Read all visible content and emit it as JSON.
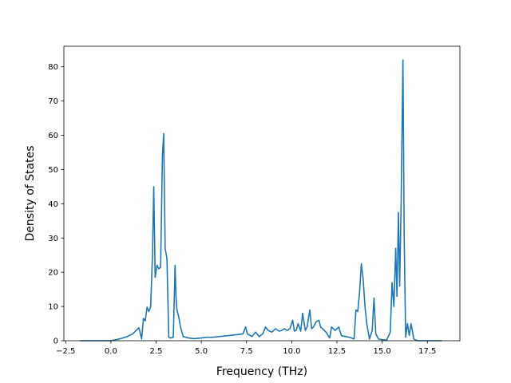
{
  "chart_data": {
    "type": "line",
    "xlabel": "Frequency (THz)",
    "ylabel": "Density of States",
    "xlim": [
      -2.6,
      19.3
    ],
    "ylim": [
      0,
      86
    ],
    "xticks": [
      -2.5,
      0.0,
      2.5,
      5.0,
      7.5,
      10.0,
      12.5,
      15.0,
      17.5
    ],
    "xtick_labels": [
      "−2.5",
      "0.0",
      "2.5",
      "5.0",
      "7.5",
      "10.0",
      "12.5",
      "15.0",
      "17.5"
    ],
    "yticks": [
      0,
      10,
      20,
      30,
      40,
      50,
      60,
      70,
      80
    ],
    "ytick_labels": [
      "0",
      "10",
      "20",
      "30",
      "40",
      "50",
      "60",
      "70",
      "80"
    ],
    "grid": false,
    "line_color": "#1f77b4",
    "series": [
      {
        "x": [
          -1.7,
          -1.0,
          -0.5,
          0.0,
          0.3,
          0.6,
          0.9,
          1.2,
          1.4,
          1.55,
          1.7,
          1.8,
          1.9,
          2.0,
          2.1,
          2.2,
          2.3,
          2.37,
          2.45,
          2.55,
          2.65,
          2.75,
          2.85,
          2.92,
          3.0,
          3.1,
          3.2,
          3.3,
          3.45,
          3.55,
          3.6,
          3.65,
          3.75,
          3.85,
          4.0,
          4.3,
          4.6,
          5.0,
          5.3,
          5.6,
          6.0,
          6.5,
          7.0,
          7.3,
          7.45,
          7.55,
          7.8,
          8.0,
          8.2,
          8.4,
          8.55,
          8.7,
          8.9,
          9.1,
          9.3,
          9.45,
          9.6,
          9.75,
          9.9,
          10.05,
          10.15,
          10.25,
          10.35,
          10.5,
          10.6,
          10.75,
          10.85,
          11.0,
          11.1,
          11.2,
          11.35,
          11.5,
          11.6,
          11.7,
          11.9,
          12.1,
          12.2,
          12.4,
          12.6,
          12.75,
          12.9,
          13.2,
          13.45,
          13.55,
          13.65,
          13.75,
          13.85,
          13.95,
          14.05,
          14.15,
          14.3,
          14.45,
          14.55,
          14.65,
          14.8,
          15.0,
          15.25,
          15.45,
          15.55,
          15.65,
          15.75,
          15.82,
          15.9,
          15.97,
          16.05,
          16.15,
          16.22,
          16.3,
          16.4,
          16.5,
          16.6,
          16.7,
          16.75,
          16.85,
          17.0,
          17.5,
          18.3
        ],
        "y": [
          0,
          0,
          0,
          0,
          0.3,
          0.7,
          1.2,
          2.0,
          3.0,
          3.8,
          0.5,
          6.5,
          5.8,
          9.8,
          8.5,
          10.0,
          25.0,
          45.0,
          18.5,
          22.0,
          21.0,
          21.5,
          54.0,
          60.5,
          27.0,
          24.0,
          1.0,
          0.8,
          1.0,
          22.0,
          13.0,
          9.0,
          7.0,
          4.0,
          1.2,
          0.8,
          0.6,
          0.8,
          1.0,
          1.0,
          1.2,
          1.5,
          1.8,
          2.0,
          4.0,
          2.0,
          1.2,
          2.5,
          1.2,
          2.0,
          4.0,
          3.0,
          2.5,
          3.5,
          2.8,
          3.0,
          3.5,
          3.0,
          3.5,
          6.0,
          2.8,
          3.0,
          5.0,
          2.8,
          8.0,
          3.0,
          4.0,
          9.0,
          3.5,
          4.0,
          5.5,
          6.0,
          4.0,
          3.5,
          2.5,
          0.8,
          4.0,
          3.0,
          4.0,
          1.5,
          1.3,
          1.0,
          0.5,
          9.0,
          8.5,
          14.0,
          22.5,
          18.0,
          10.0,
          5.0,
          0.5,
          3.0,
          12.5,
          2.0,
          0.5,
          0.3,
          0.2,
          2.5,
          17.0,
          10.0,
          27.0,
          13.0,
          37.5,
          16.0,
          40.0,
          82.0,
          30.0,
          1.0,
          5.0,
          1.5,
          5.0,
          2.0,
          0.5,
          0.2,
          0,
          0,
          0
        ]
      }
    ]
  }
}
